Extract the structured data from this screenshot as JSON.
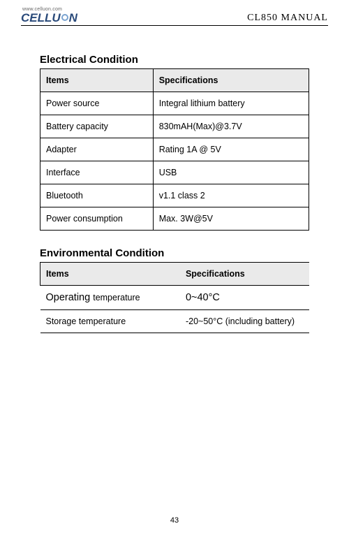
{
  "header": {
    "url": "www.celluon.com",
    "brand_pre": "CELLU",
    "brand_post": "N",
    "manual": "CL850 MANUAL"
  },
  "sections": {
    "electrical": {
      "title": "Electrical Condition",
      "headers": {
        "items": "Items",
        "specs": "Specifications"
      },
      "rows": [
        {
          "item": "Power source",
          "spec": "Integral lithium battery"
        },
        {
          "item": "Battery capacity",
          "spec": "830mAH(Max)@3.7V"
        },
        {
          "item": "Adapter",
          "spec": "Rating 1A @ 5V"
        },
        {
          "item": "Interface",
          "spec": "USB"
        },
        {
          "item": "Bluetooth",
          "spec": "v1.1 class 2"
        },
        {
          "item": "Power consumption",
          "spec": "Max. 3W@5V"
        }
      ]
    },
    "environmental": {
      "title": "Environmental Condition",
      "headers": {
        "items": "Items",
        "specs": "Specifications"
      },
      "rows": [
        {
          "item_big": "Operating ",
          "item_small": "temperature",
          "spec": "0~40°C"
        },
        {
          "item": "Storage temperature",
          "spec": "-20~50°C (including battery)"
        }
      ]
    }
  },
  "page_number": "43",
  "styling": {
    "page_bg": "#ffffff",
    "header_border": "#000000",
    "th_bg": "#eaeaea",
    "cell_border": "#000000",
    "body_font": "Arial",
    "title_fontsize_pt": 15,
    "cell_fontsize_pt": 12.5,
    "bigrow_fontsize_pt": 14.5,
    "manual_font": "Times New Roman",
    "logo_color": "#2a4a7a",
    "logo_accent": "#7aa3d0"
  }
}
